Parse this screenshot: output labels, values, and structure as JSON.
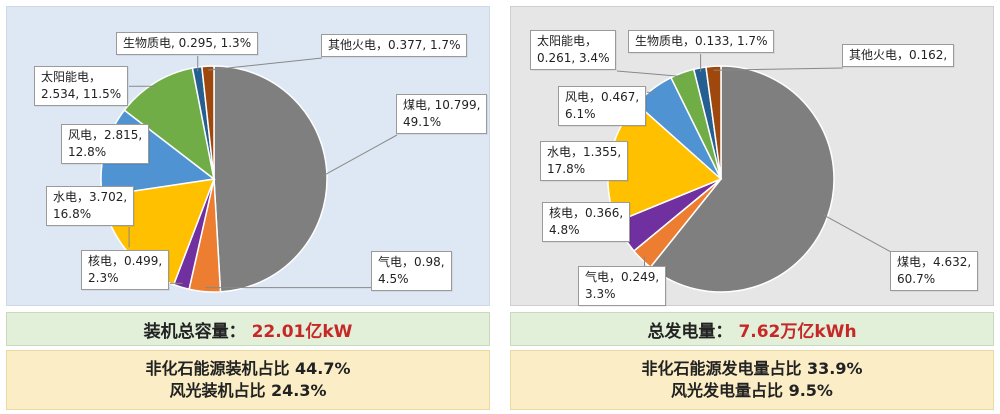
{
  "chart_data": [
    {
      "type": "pie",
      "title": "",
      "slices": [
        {
          "name": "煤电",
          "value": 10.799,
          "pct": "49.1%",
          "color": "#7f7f7f"
        },
        {
          "name": "气电",
          "value": 0.98,
          "pct": "4.5%",
          "color": "#ed7d31"
        },
        {
          "name": "核电",
          "value": 0.499,
          "pct": "2.3%",
          "color": "#7030a0"
        },
        {
          "name": "水电",
          "value": 3.702,
          "pct": "16.8%",
          "color": "#ffc000"
        },
        {
          "name": "风电",
          "value": 2.815,
          "pct": "12.8%",
          "color": "#4f93d2"
        },
        {
          "name": "太阳能电",
          "value": 2.534,
          "pct": "11.5%",
          "color": "#70ad47"
        },
        {
          "name": "生物质电",
          "value": 0.295,
          "pct": "1.3%",
          "color": "#255e91"
        },
        {
          "name": "其他火电",
          "value": 0.377,
          "pct": "1.7%",
          "color": "#9e480e"
        }
      ],
      "labels": [
        {
          "slice": 0,
          "line1": "煤电, 10.799,",
          "line2": "49.1%"
        },
        {
          "slice": 1,
          "line1": "气电，0.98,",
          "line2": "4.5%"
        },
        {
          "slice": 2,
          "line1": "核电，0.499,",
          "line2": "2.3%"
        },
        {
          "slice": 3,
          "line1": "水电，3.702,",
          "line2": "16.8%"
        },
        {
          "slice": 4,
          "line1": "风电，2.815,",
          "line2": "12.8%"
        },
        {
          "slice": 5,
          "line1": "太阳能电，",
          "line2": "2.534, 11.5%"
        },
        {
          "slice": 6,
          "line1": "生物质电, 0.295, 1.3%",
          "line2": ""
        },
        {
          "slice": 7,
          "line1": "其他火电，0.377, 1.7%",
          "line2": ""
        }
      ]
    },
    {
      "type": "pie",
      "title": "",
      "slices": [
        {
          "name": "煤电",
          "value": 4.632,
          "pct": "60.7%",
          "color": "#7f7f7f"
        },
        {
          "name": "气电",
          "value": 0.249,
          "pct": "3.3%",
          "color": "#ed7d31"
        },
        {
          "name": "核电",
          "value": 0.366,
          "pct": "4.8%",
          "color": "#7030a0"
        },
        {
          "name": "水电",
          "value": 1.355,
          "pct": "17.8%",
          "color": "#ffc000"
        },
        {
          "name": "风电",
          "value": 0.467,
          "pct": "6.1%",
          "color": "#4f93d2"
        },
        {
          "name": "太阳能电",
          "value": 0.261,
          "pct": "3.4%",
          "color": "#70ad47"
        },
        {
          "name": "生物质电",
          "value": 0.133,
          "pct": "1.7%",
          "color": "#255e91"
        },
        {
          "name": "其他火电",
          "value": 0.162,
          "pct": "",
          "color": "#9e480e"
        }
      ],
      "labels": [
        {
          "slice": 0,
          "line1": "煤电，4.632,",
          "line2": "60.7%"
        },
        {
          "slice": 1,
          "line1": "气电，0.249,",
          "line2": "3.3%"
        },
        {
          "slice": 2,
          "line1": "核电，0.366,",
          "line2": "4.8%"
        },
        {
          "slice": 3,
          "line1": "水电，1.355,",
          "line2": "17.8%"
        },
        {
          "slice": 4,
          "line1": "风电，0.467,",
          "line2": "6.1%"
        },
        {
          "slice": 5,
          "line1": "太阳能电，",
          "line2": "0.261, 3.4%"
        },
        {
          "slice": 6,
          "line1": "生物质电，0.133, 1.7%",
          "line2": ""
        },
        {
          "slice": 7,
          "line1": "其他火电，0.162,",
          "line2": ""
        }
      ]
    }
  ],
  "left": {
    "total_label": "装机总容量：",
    "total_value": "22.01亿kW",
    "ratio_line1": "非化石能源装机占比 44.7%",
    "ratio_line2": "风光装机占比 24.3%"
  },
  "right": {
    "total_label": "总发电量：",
    "total_value": "7.62万亿kWh",
    "ratio_line1": "非化石能源发电量占比 33.9%",
    "ratio_line2": "风光发电量占比 9.5%"
  }
}
